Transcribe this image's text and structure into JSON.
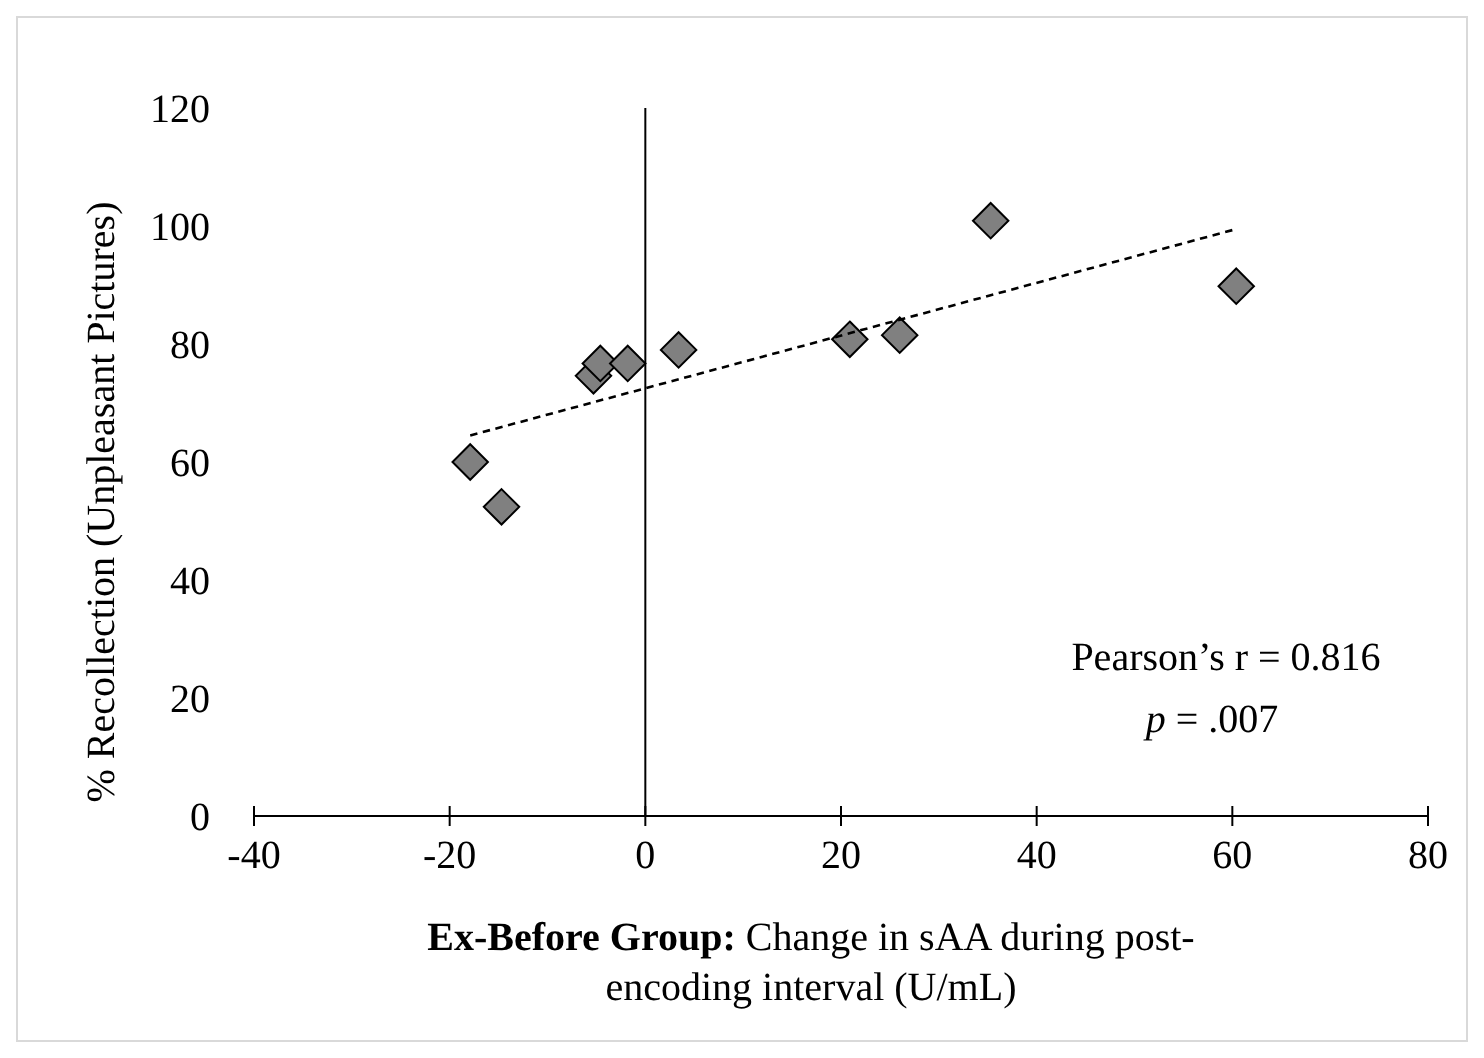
{
  "chart_data": {
    "type": "scatter",
    "xlabel": "Ex-Before Group: Change in sAA during post-encoding interval (U/mL)",
    "ylabel": "% Recollection (Unpleasant Pictures)",
    "xlim": [
      -40,
      80
    ],
    "xticks": [
      -40,
      -20,
      0,
      20,
      40,
      60,
      80
    ],
    "ylim": [
      0,
      120
    ],
    "yticks": [
      0,
      20,
      40,
      60,
      80,
      100,
      120
    ],
    "series": [
      {
        "marker": "diamond",
        "color": "#808080",
        "x": [
          -17.9,
          -14.7,
          -5.3,
          -4.6,
          -1.8,
          3.4,
          20.9,
          26.0,
          35.3,
          60.4
        ],
        "values": [
          60,
          52.4,
          74.6,
          76.7,
          76.7,
          79,
          80.8,
          81.5,
          100.9,
          89.8
        ]
      },
      {
        "type": "line",
        "color": "#000000",
        "line_style": "dashed",
        "x": [
          -17.9,
          60
        ],
        "values": [
          64.5,
          99.3
        ]
      }
    ],
    "annotations": [
      "Pearson’s r = 0.816",
      "p = .007"
    ]
  }
}
